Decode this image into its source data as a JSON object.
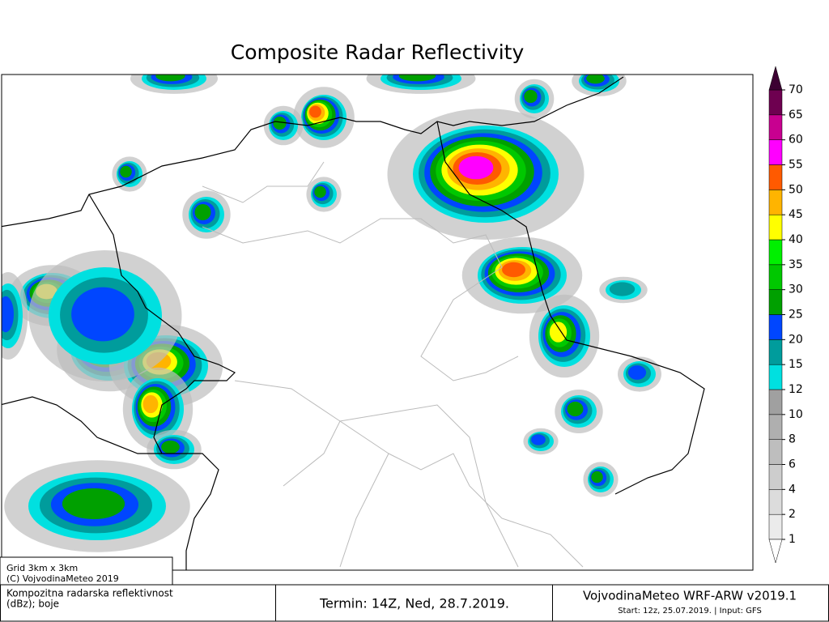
{
  "title": "Composite Radar Reflectivity",
  "legend": {
    "levels": [
      1,
      2,
      4,
      6,
      8,
      10,
      12,
      15,
      20,
      25,
      30,
      35,
      40,
      45,
      50,
      55,
      60,
      65,
      70
    ],
    "colors": [
      "#ebebeb",
      "#dcdcdc",
      "#cdcdcd",
      "#bebebe",
      "#afafaf",
      "#a0a0a0",
      "#00e0e0",
      "#009c9c",
      "#0046ff",
      "#00a000",
      "#00c800",
      "#00f000",
      "#ffff00",
      "#ffb400",
      "#ff5a00",
      "#ff00ff",
      "#c80090",
      "#6e0050"
    ],
    "below_color": "#ffffff",
    "above_color": "#3c0032"
  },
  "info": {
    "grid": "Grid 3km x 3km",
    "copyright": "(C) VojvodinaMeteo 2019"
  },
  "footer": {
    "left": [
      "Kompozitna radarska reflektivnost",
      "(dBz); boje"
    ],
    "center": "Termin: 14Z, Ned, 28.7.2019.",
    "right_title": "VojvodinaMeteo WRF-ARW v2019.1",
    "right_sub": "Start: 12z, 25.07.2019. | Input: GFS"
  }
}
